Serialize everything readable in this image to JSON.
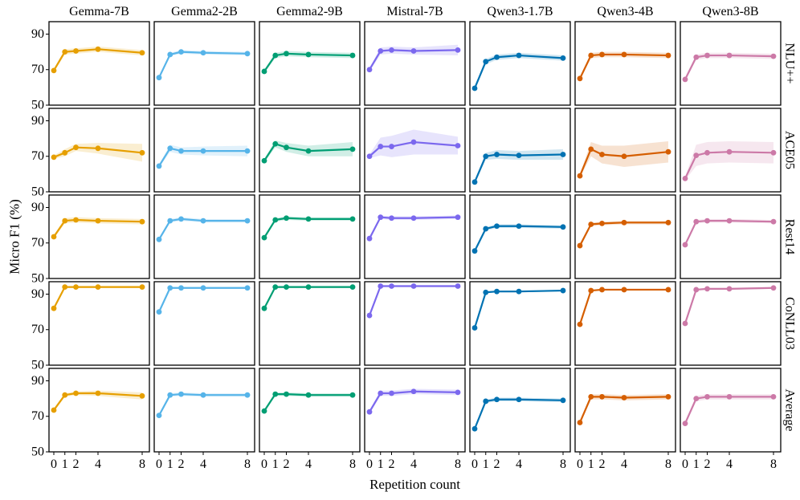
{
  "chart_data": {
    "type": "line",
    "title": "",
    "xlabel": "Repetition count",
    "ylabel": "Micro F1 (%)",
    "x": [
      0,
      1,
      2,
      4,
      8
    ],
    "x_ticks": [
      "0",
      "1",
      "2",
      "4",
      "8"
    ],
    "ylim": [
      50,
      97
    ],
    "y_ticks": [
      50,
      70,
      90
    ],
    "models": [
      "Gemma-7B",
      "Gemma2-2B",
      "Gemma2-9B",
      "Mistral-7B",
      "Qwen3-1.7B",
      "Qwen3-4B",
      "Qwen3-8B"
    ],
    "colors": [
      "#E69F00",
      "#56B4E9",
      "#009E73",
      "#7B68EE",
      "#0072B2",
      "#D55E00",
      "#CC79A7"
    ],
    "datasets": [
      "NLU++",
      "ACE05",
      "Rest14",
      "CoNLL03",
      "Average"
    ],
    "series": [
      {
        "dataset": "NLU++",
        "model": "Gemma-7B",
        "values": [
          69.5,
          80,
          80.5,
          81.5,
          79.5
        ],
        "band": [
          1,
          1.5,
          1.5,
          1.5,
          1.5
        ]
      },
      {
        "dataset": "NLU++",
        "model": "Gemma2-2B",
        "values": [
          65.5,
          78.5,
          80,
          79.5,
          79
        ],
        "band": [
          1,
          1,
          1,
          1,
          1
        ]
      },
      {
        "dataset": "NLU++",
        "model": "Gemma2-9B",
        "values": [
          69,
          78,
          79,
          78.5,
          78
        ],
        "band": [
          1,
          1.5,
          1.5,
          1.5,
          1.5
        ]
      },
      {
        "dataset": "NLU++",
        "model": "Mistral-7B",
        "values": [
          70,
          80.5,
          81,
          80.5,
          81
        ],
        "band": [
          1,
          2,
          2,
          2,
          3
        ]
      },
      {
        "dataset": "NLU++",
        "model": "Qwen3-1.7B",
        "values": [
          59.5,
          74.5,
          77,
          78,
          76.5
        ],
        "band": [
          1,
          1.5,
          1.5,
          1.5,
          1.5
        ]
      },
      {
        "dataset": "NLU++",
        "model": "Qwen3-4B",
        "values": [
          65,
          78,
          78.5,
          78.5,
          78
        ],
        "band": [
          1,
          1.5,
          1.5,
          1.5,
          1.5
        ]
      },
      {
        "dataset": "NLU++",
        "model": "Qwen3-8B",
        "values": [
          64.5,
          77,
          78,
          78,
          77.5
        ],
        "band": [
          1,
          1.5,
          1.5,
          1.5,
          1.5
        ]
      },
      {
        "dataset": "ACE05",
        "model": "Gemma-7B",
        "values": [
          69.5,
          72,
          75,
          74.5,
          72
        ],
        "band": [
          1,
          2,
          2,
          3,
          5
        ]
      },
      {
        "dataset": "ACE05",
        "model": "Gemma2-2B",
        "values": [
          64.5,
          74.5,
          73,
          73,
          73
        ],
        "band": [
          1,
          2,
          2,
          2.5,
          3
        ]
      },
      {
        "dataset": "ACE05",
        "model": "Gemma2-9B",
        "values": [
          67.5,
          77,
          75,
          73,
          74
        ],
        "band": [
          1,
          2,
          2.5,
          3,
          4
        ]
      },
      {
        "dataset": "ACE05",
        "model": "Mistral-7B",
        "values": [
          70,
          75.5,
          75.5,
          78,
          76
        ],
        "band": [
          1,
          5,
          6,
          7,
          5
        ]
      },
      {
        "dataset": "ACE05",
        "model": "Qwen3-1.7B",
        "values": [
          55.5,
          70,
          71,
          70.5,
          71
        ],
        "band": [
          1,
          2,
          2.5,
          2.5,
          3
        ]
      },
      {
        "dataset": "ACE05",
        "model": "Qwen3-4B",
        "values": [
          59,
          74,
          71,
          70,
          72.5
        ],
        "band": [
          1,
          4,
          5,
          6,
          6
        ]
      },
      {
        "dataset": "ACE05",
        "model": "Qwen3-8B",
        "values": [
          57.5,
          70.5,
          72,
          72.5,
          72
        ],
        "band": [
          1,
          6,
          6,
          6,
          6
        ]
      },
      {
        "dataset": "Rest14",
        "model": "Gemma-7B",
        "values": [
          73.5,
          82.5,
          83,
          82.5,
          82
        ],
        "band": [
          1,
          1.5,
          1.5,
          1.5,
          1.5
        ]
      },
      {
        "dataset": "Rest14",
        "model": "Gemma2-2B",
        "values": [
          72,
          82.5,
          83.5,
          82.5,
          82.5
        ],
        "band": [
          1,
          1,
          1,
          1,
          1
        ]
      },
      {
        "dataset": "Rest14",
        "model": "Gemma2-9B",
        "values": [
          73,
          83,
          84,
          83.5,
          83.5
        ],
        "band": [
          1,
          1,
          1,
          1,
          1
        ]
      },
      {
        "dataset": "Rest14",
        "model": "Mistral-7B",
        "values": [
          72.5,
          84.5,
          84,
          84,
          84.5
        ],
        "band": [
          1,
          1,
          1,
          1,
          1
        ]
      },
      {
        "dataset": "Rest14",
        "model": "Qwen3-1.7B",
        "values": [
          65.5,
          78,
          79.5,
          79.5,
          79
        ],
        "band": [
          1,
          1,
          1,
          1,
          1
        ]
      },
      {
        "dataset": "Rest14",
        "model": "Qwen3-4B",
        "values": [
          68.5,
          80.5,
          81,
          81.5,
          81.5
        ],
        "band": [
          1,
          1,
          1,
          1,
          1
        ]
      },
      {
        "dataset": "Rest14",
        "model": "Qwen3-8B",
        "values": [
          69,
          82,
          82.5,
          82.5,
          82
        ],
        "band": [
          1,
          1,
          1,
          1,
          1
        ]
      },
      {
        "dataset": "CoNLL03",
        "model": "Gemma-7B",
        "values": [
          82,
          94,
          94,
          94,
          94
        ],
        "band": [
          0.5,
          0.5,
          0.5,
          0.5,
          0.5
        ]
      },
      {
        "dataset": "CoNLL03",
        "model": "Gemma2-2B",
        "values": [
          80,
          93.5,
          93.5,
          93.5,
          93.5
        ],
        "band": [
          0.5,
          0.5,
          0.5,
          0.5,
          0.5
        ]
      },
      {
        "dataset": "CoNLL03",
        "model": "Gemma2-9B",
        "values": [
          82,
          94,
          94,
          94,
          94
        ],
        "band": [
          0.5,
          0.5,
          0.5,
          0.5,
          0.5
        ]
      },
      {
        "dataset": "CoNLL03",
        "model": "Mistral-7B",
        "values": [
          78,
          94.5,
          94.5,
          94.5,
          94.5
        ],
        "band": [
          0.5,
          0.5,
          0.5,
          0.5,
          0.5
        ]
      },
      {
        "dataset": "CoNLL03",
        "model": "Qwen3-1.7B",
        "values": [
          71,
          91,
          91.5,
          91.5,
          92
        ],
        "band": [
          0.5,
          0.5,
          0.5,
          0.5,
          0.5
        ]
      },
      {
        "dataset": "CoNLL03",
        "model": "Qwen3-4B",
        "values": [
          73,
          92,
          92.5,
          92.5,
          92.5
        ],
        "band": [
          0.5,
          0.5,
          0.5,
          0.5,
          0.5
        ]
      },
      {
        "dataset": "CoNLL03",
        "model": "Qwen3-8B",
        "values": [
          73.5,
          92.5,
          93,
          93,
          93.5
        ],
        "band": [
          0.5,
          0.5,
          0.5,
          0.5,
          0.5
        ]
      },
      {
        "dataset": "Average",
        "model": "Gemma-7B",
        "values": [
          73.5,
          82,
          83,
          83,
          81.5
        ],
        "band": [
          1,
          1,
          1,
          1.5,
          2
        ]
      },
      {
        "dataset": "Average",
        "model": "Gemma2-2B",
        "values": [
          70.5,
          82,
          82.5,
          82,
          82
        ],
        "band": [
          1,
          1,
          1,
          1,
          1
        ]
      },
      {
        "dataset": "Average",
        "model": "Gemma2-9B",
        "values": [
          73,
          82.5,
          82.5,
          82,
          82
        ],
        "band": [
          1,
          1,
          1,
          1,
          1
        ]
      },
      {
        "dataset": "Average",
        "model": "Mistral-7B",
        "values": [
          72.5,
          83,
          83,
          84,
          83.5
        ],
        "band": [
          1,
          1.5,
          1.5,
          1.5,
          1.5
        ]
      },
      {
        "dataset": "Average",
        "model": "Qwen3-1.7B",
        "values": [
          63,
          78.5,
          79.5,
          79.5,
          79
        ],
        "band": [
          1,
          1,
          1,
          1,
          1
        ]
      },
      {
        "dataset": "Average",
        "model": "Qwen3-4B",
        "values": [
          66.5,
          81,
          81,
          80.5,
          81
        ],
        "band": [
          1,
          1.5,
          1.5,
          1.5,
          1.5
        ]
      },
      {
        "dataset": "Average",
        "model": "Qwen3-8B",
        "values": [
          66,
          80,
          81,
          81,
          81
        ],
        "band": [
          1,
          1.5,
          1.5,
          1.5,
          1.5
        ]
      }
    ]
  }
}
